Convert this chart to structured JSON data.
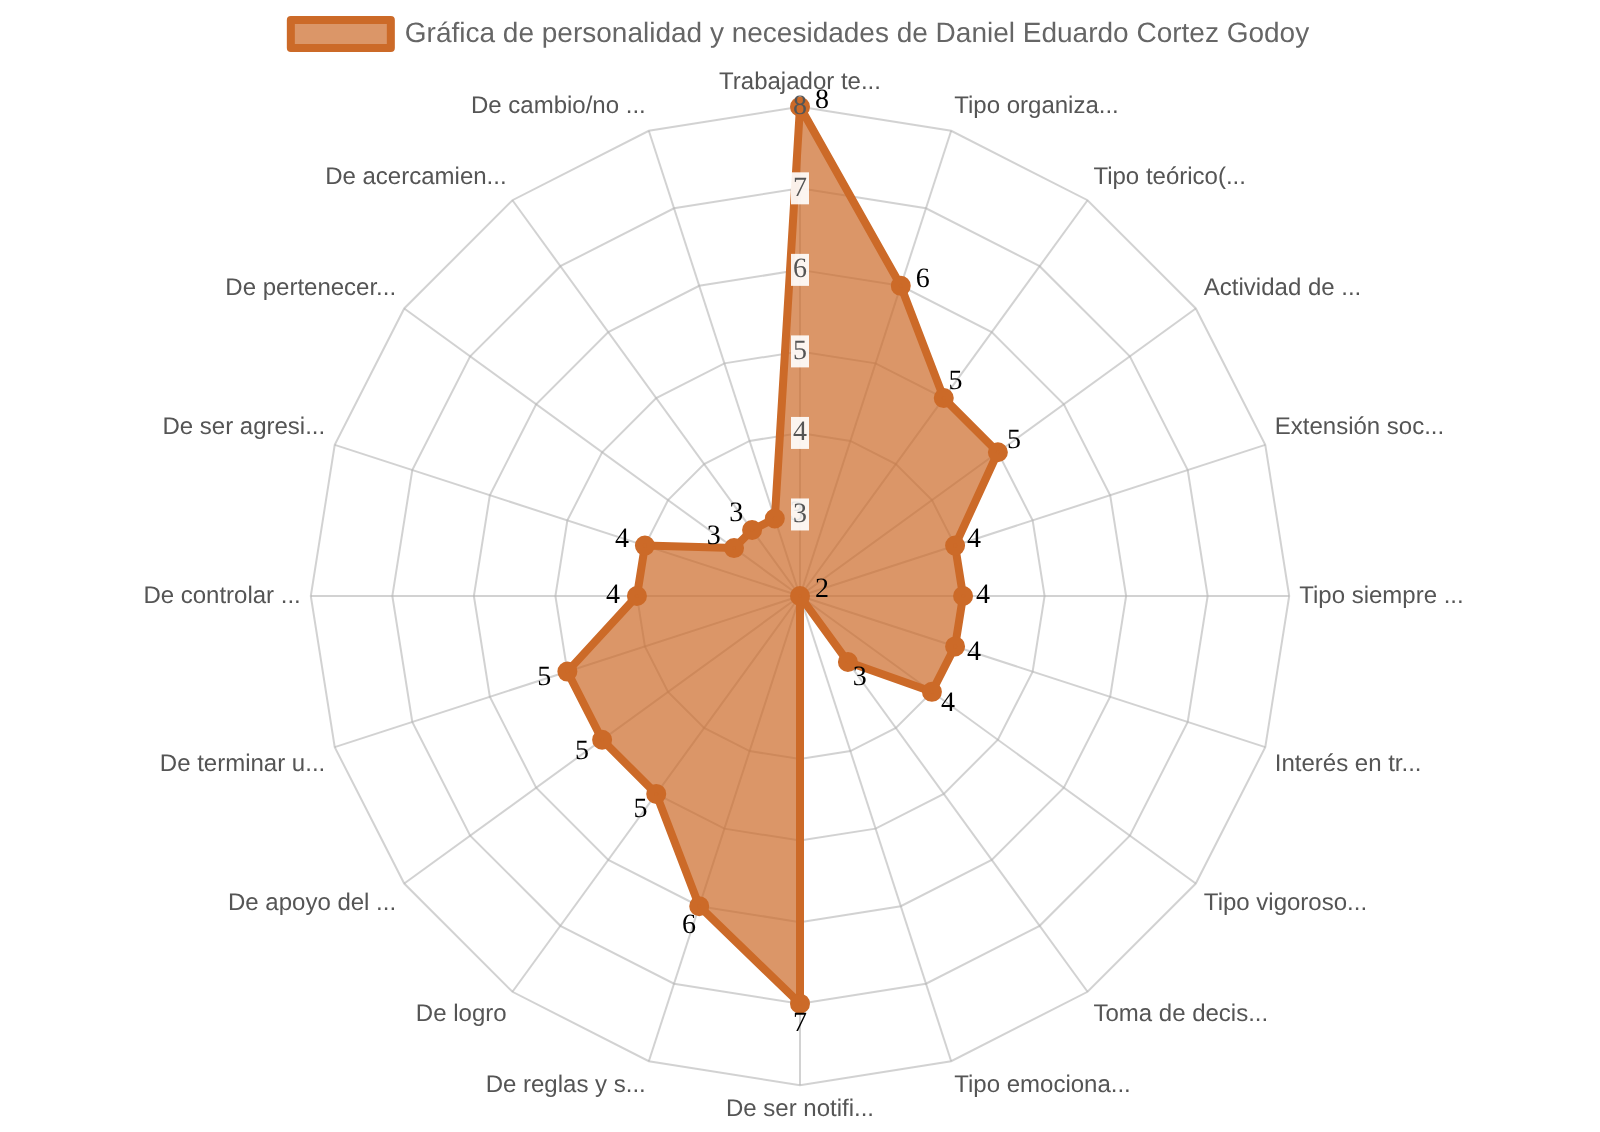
{
  "chart_data": {
    "type": "radar",
    "categories": [
      "Trabajador te...",
      "Tipo organiza...",
      "Tipo teórico(...",
      "Actividad de ...",
      "Extensión soc...",
      "Tipo siempre ...",
      "Interés en tr...",
      "Tipo vigoroso...",
      "Toma de decis...",
      "Tipo emociona...",
      "De ser notifi...",
      "De reglas y s...",
      "De logro",
      "De apoyo del ...",
      "De terminar u...",
      "De controlar ...",
      "De ser agresi...",
      "De pertenecer...",
      "De acercamien...",
      "De cambio/no ..."
    ],
    "series": [
      {
        "name": "Gráfica de personalidad y necesidades de Daniel Eduardo Cortez Godoy",
        "color": "#cc6a28",
        "values": [
          8,
          6,
          5,
          5,
          4,
          4,
          4,
          4,
          3,
          2,
          7,
          6,
          5,
          5,
          5,
          4,
          4,
          3,
          3,
          3
        ]
      }
    ],
    "ylim": [
      2,
      8
    ],
    "yticks": [
      3,
      4,
      5,
      6,
      7,
      8
    ],
    "grid": true,
    "legend": "top",
    "data_labels": true
  }
}
